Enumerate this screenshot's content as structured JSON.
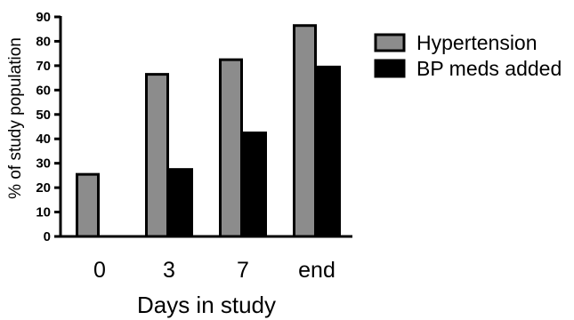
{
  "chart_data": {
    "type": "bar",
    "categories": [
      "0",
      "3",
      "7",
      "end"
    ],
    "series": [
      {
        "name": "Hypertension",
        "values": [
          26,
          67,
          73,
          87
        ],
        "color": "#8c8c8c"
      },
      {
        "name": "BP meds added",
        "values": [
          0,
          28,
          43,
          70
        ],
        "color": "#000000"
      }
    ],
    "xlabel": "Days in study",
    "ylabel": "% of study population",
    "ylim": [
      0,
      90
    ],
    "yticks": [
      0,
      10,
      20,
      30,
      40,
      50,
      60,
      70,
      80,
      90
    ],
    "grid": false,
    "legend_position": "right"
  }
}
